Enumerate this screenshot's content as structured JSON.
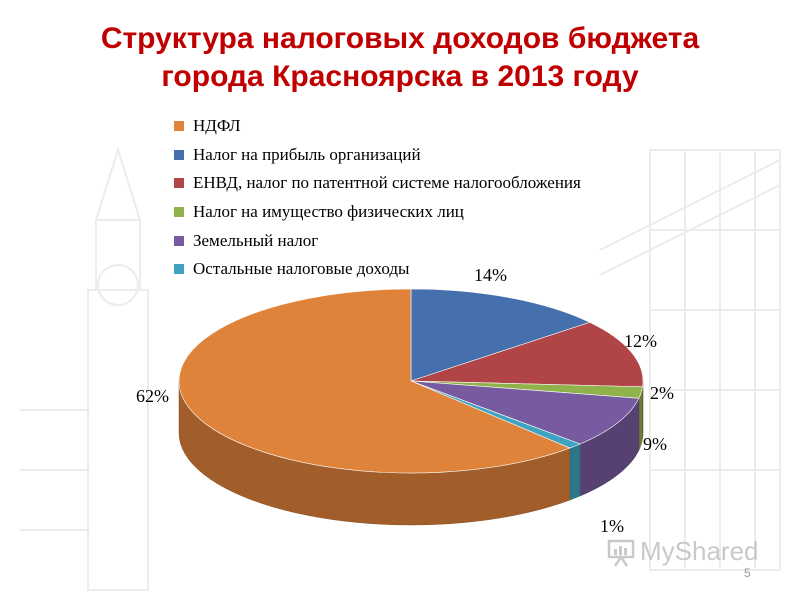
{
  "slide": {
    "title_line1": "Структура налоговых доходов бюджета",
    "title_line2": "города Красноярска в 2013 году",
    "watermark": "MyShared",
    "page_number": "5"
  },
  "chart_data": {
    "type": "pie",
    "title": "Структура налоговых доходов бюджета города Красноярска в 2013 году",
    "legend_position": "top",
    "categories": [
      "НДФЛ",
      "Налог на прибыль организаций",
      "ЕНВД, налог по патентной системе налогообложения",
      "Налог на имущество физических лиц",
      "Земельный налог",
      "Остальные налоговые доходы"
    ],
    "values": [
      62,
      14,
      12,
      2,
      9,
      1
    ],
    "labels": [
      "62%",
      "14%",
      "12%",
      "2%",
      "9%",
      "1%"
    ],
    "colors": [
      "#e0833a",
      "#4670ad",
      "#b04446",
      "#8fb24a",
      "#775a9f",
      "#3fa2c0"
    ]
  }
}
